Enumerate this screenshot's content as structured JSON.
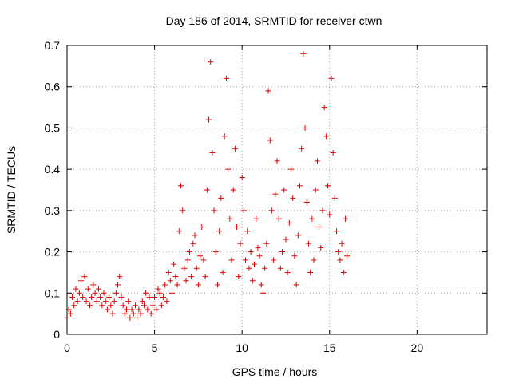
{
  "chart_data": {
    "type": "scatter",
    "title": "Day 186 of 2014, SRMTID for receiver ctwn",
    "xlabel": "GPS time / hours",
    "ylabel": "SRMTID / TECUs",
    "xlim": [
      0,
      24
    ],
    "ylim": [
      0,
      0.7
    ],
    "xticks": [
      0,
      5,
      10,
      15,
      20
    ],
    "yticks": [
      0,
      0.1,
      0.2,
      0.3,
      0.4,
      0.5,
      0.6,
      0.7
    ],
    "xtick_labels": [
      "0",
      "5",
      "10",
      "15",
      "20"
    ],
    "ytick_labels": [
      "0",
      "0.1",
      "0.2",
      "0.3",
      "0.4",
      "0.5",
      "0.6",
      "0.7"
    ],
    "grid": true,
    "marker": "+",
    "colors": {
      "series": "#e00000",
      "grid": "#a0a0a0",
      "axis": "#000000"
    },
    "series": [
      {
        "name": "SRMTID",
        "x": [
          0.0,
          0.1,
          0.2,
          0.3,
          0.4,
          0.5,
          0.6,
          0.7,
          0.8,
          0.9,
          1.0,
          1.1,
          1.2,
          1.3,
          1.4,
          1.5,
          1.6,
          1.7,
          1.8,
          1.9,
          2.0,
          2.1,
          2.2,
          2.3,
          2.4,
          2.5,
          2.6,
          2.7,
          2.8,
          2.9,
          3.0,
          3.1,
          3.2,
          3.3,
          3.4,
          3.5,
          3.6,
          3.7,
          3.8,
          3.9,
          4.0,
          4.1,
          4.2,
          4.3,
          4.4,
          4.5,
          4.6,
          4.7,
          4.8,
          4.9,
          5.0,
          5.1,
          5.2,
          5.3,
          5.4,
          5.5,
          5.6,
          5.7,
          5.8,
          5.9,
          6.0,
          6.1,
          6.2,
          6.3,
          6.4,
          6.5,
          6.6,
          6.7,
          6.8,
          6.9,
          7.0,
          7.1,
          7.2,
          7.3,
          7.4,
          7.5,
          7.6,
          7.7,
          7.8,
          7.9,
          8.0,
          8.1,
          8.2,
          8.3,
          8.4,
          8.5,
          8.6,
          8.7,
          8.8,
          8.9,
          9.0,
          9.1,
          9.2,
          9.3,
          9.4,
          9.5,
          9.6,
          9.7,
          9.8,
          9.9,
          10.0,
          10.1,
          10.2,
          10.3,
          10.4,
          10.5,
          10.6,
          10.7,
          10.8,
          10.9,
          11.0,
          11.1,
          11.2,
          11.3,
          11.4,
          11.5,
          11.6,
          11.7,
          11.8,
          11.9,
          12.0,
          12.1,
          12.2,
          12.3,
          12.4,
          12.5,
          12.6,
          12.7,
          12.8,
          12.9,
          13.0,
          13.1,
          13.2,
          13.3,
          13.4,
          13.5,
          13.6,
          13.7,
          13.8,
          13.9,
          14.0,
          14.1,
          14.2,
          14.3,
          14.4,
          14.5,
          14.6,
          14.7,
          14.8,
          14.9,
          15.0,
          15.1,
          15.2,
          15.3,
          15.4,
          15.5,
          15.6,
          15.7,
          15.8,
          15.9,
          16.0
        ],
        "y": [
          0.04,
          0.06,
          0.05,
          0.09,
          0.07,
          0.11,
          0.08,
          0.1,
          0.13,
          0.09,
          0.14,
          0.08,
          0.11,
          0.07,
          0.09,
          0.12,
          0.1,
          0.08,
          0.11,
          0.09,
          0.07,
          0.1,
          0.08,
          0.06,
          0.09,
          0.07,
          0.05,
          0.08,
          0.1,
          0.12,
          0.14,
          0.09,
          0.07,
          0.05,
          0.06,
          0.08,
          0.04,
          0.06,
          0.05,
          0.07,
          0.04,
          0.06,
          0.05,
          0.08,
          0.07,
          0.1,
          0.06,
          0.09,
          0.05,
          0.07,
          0.09,
          0.06,
          0.11,
          0.1,
          0.07,
          0.09,
          0.12,
          0.08,
          0.15,
          0.13,
          0.1,
          0.17,
          0.14,
          0.12,
          0.25,
          0.36,
          0.3,
          0.16,
          0.13,
          0.18,
          0.2,
          0.14,
          0.22,
          0.24,
          0.16,
          0.12,
          0.19,
          0.26,
          0.18,
          0.14,
          0.35,
          0.52,
          0.66,
          0.44,
          0.3,
          0.2,
          0.12,
          0.25,
          0.33,
          0.15,
          0.48,
          0.62,
          0.4,
          0.28,
          0.18,
          0.35,
          0.45,
          0.26,
          0.14,
          0.22,
          0.38,
          0.3,
          0.18,
          0.25,
          0.16,
          0.2,
          0.13,
          0.17,
          0.28,
          0.21,
          0.19,
          0.12,
          0.1,
          0.16,
          0.22,
          0.59,
          0.47,
          0.3,
          0.18,
          0.34,
          0.42,
          0.28,
          0.16,
          0.2,
          0.35,
          0.23,
          0.15,
          0.27,
          0.4,
          0.33,
          0.19,
          0.12,
          0.24,
          0.36,
          0.45,
          0.68,
          0.5,
          0.32,
          0.22,
          0.15,
          0.28,
          0.18,
          0.35,
          0.42,
          0.26,
          0.21,
          0.3,
          0.55,
          0.48,
          0.36,
          0.29,
          0.62,
          0.44,
          0.33,
          0.25,
          0.2,
          0.18,
          0.22,
          0.15,
          0.28,
          0.19
        ]
      }
    ]
  }
}
